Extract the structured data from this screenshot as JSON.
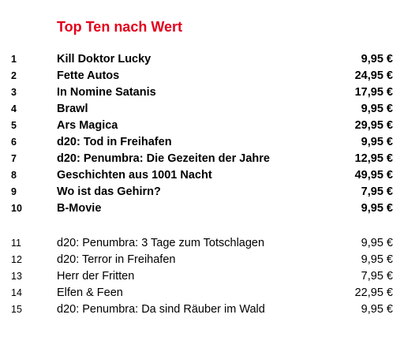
{
  "title": "Top Ten nach Wert",
  "title_color": "#e3001b",
  "top_ten": [
    {
      "rank": "1",
      "name": "Kill Doktor Lucky",
      "price": "9,95 €"
    },
    {
      "rank": "2",
      "name": "Fette Autos",
      "price": "24,95 €"
    },
    {
      "rank": "3",
      "name": "In Nomine Satanis",
      "price": "17,95 €"
    },
    {
      "rank": "4",
      "name": "Brawl",
      "price": "9,95 €"
    },
    {
      "rank": "5",
      "name": "Ars Magica",
      "price": "29,95 €"
    },
    {
      "rank": "6",
      "name": "d20: Tod in Freihafen",
      "price": "9,95 €"
    },
    {
      "rank": "7",
      "name": "d20: Penumbra: Die Gezeiten der Jahre",
      "price": "12,95 €"
    },
    {
      "rank": "8",
      "name": "Geschichten aus 1001 Nacht",
      "price": "49,95 €"
    },
    {
      "rank": "9",
      "name": "Wo ist das Gehirn?",
      "price": "7,95 €"
    },
    {
      "rank": "10",
      "name": "B-Movie",
      "price": "9,95 €"
    }
  ],
  "others": [
    {
      "rank": "11",
      "name": "d20: Penumbra: 3 Tage zum Totschlagen",
      "price": "9,95 €"
    },
    {
      "rank": "12",
      "name": "d20: Terror in Freihafen",
      "price": "9,95 €"
    },
    {
      "rank": "13",
      "name": "Herr der Fritten",
      "price": "7,95 €"
    },
    {
      "rank": "14",
      "name": "Elfen & Feen",
      "price": "22,95 €"
    },
    {
      "rank": "15",
      "name": "d20: Penumbra: Da sind Räuber im Wald",
      "price": "9,95 €"
    }
  ]
}
